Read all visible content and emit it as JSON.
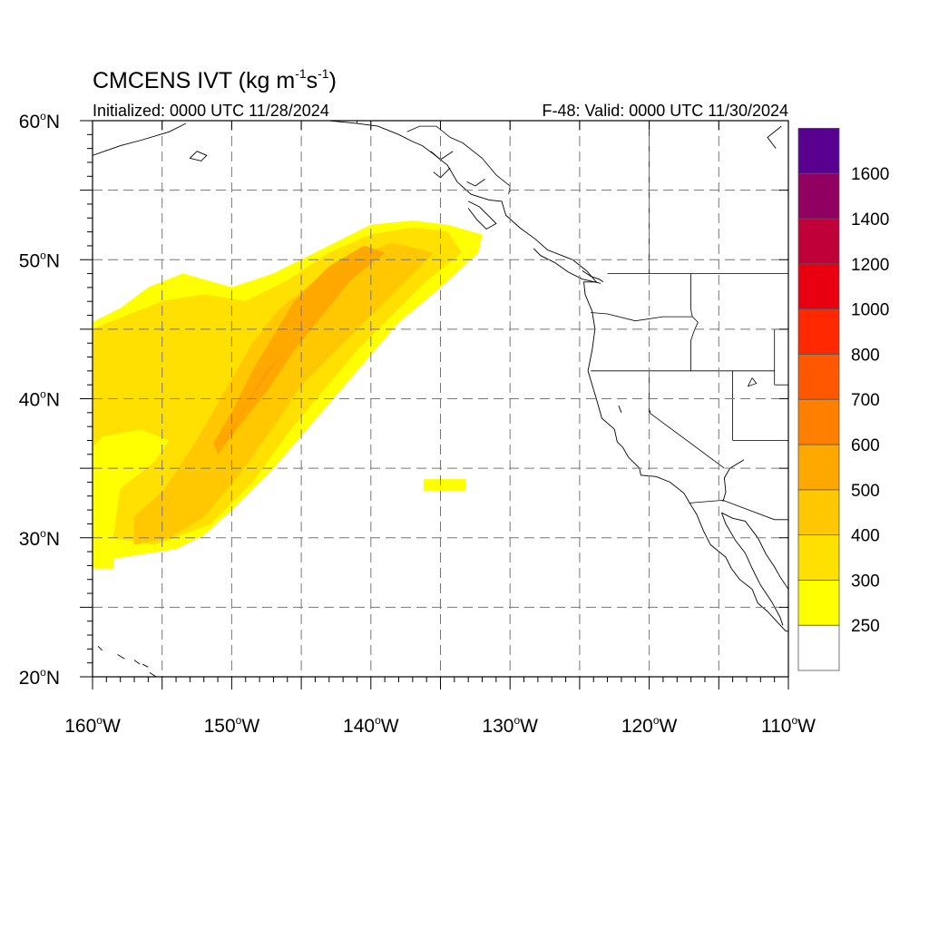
{
  "title": {
    "main": "CMCENS IVT (kg m",
    "exp1": "-1",
    "mid": "s",
    "exp2": "-1",
    "close": ")"
  },
  "subtitle_left": "Initialized: 0000 UTC 11/28/2024",
  "subtitle_right": "F-48: Valid: 0000 UTC 11/30/2024",
  "map": {
    "lon_range": [
      -160,
      -110
    ],
    "lat_range": [
      20,
      60
    ],
    "x_ticks": [
      {
        "lon": -160,
        "label": "160",
        "hemi": "W"
      },
      {
        "lon": -150,
        "label": "150",
        "hemi": "W"
      },
      {
        "lon": -140,
        "label": "140",
        "hemi": "W"
      },
      {
        "lon": -130,
        "label": "130",
        "hemi": "W"
      },
      {
        "lon": -120,
        "label": "120",
        "hemi": "W"
      },
      {
        "lon": -110,
        "label": "110",
        "hemi": "W"
      }
    ],
    "y_ticks": [
      {
        "lat": 60,
        "label": "60",
        "hemi": "N"
      },
      {
        "lat": 50,
        "label": "50",
        "hemi": "N"
      },
      {
        "lat": 40,
        "label": "40",
        "hemi": "N"
      },
      {
        "lat": 30,
        "label": "30",
        "hemi": "N"
      },
      {
        "lat": 20,
        "label": "20",
        "hemi": "N"
      }
    ],
    "grid_lons": [
      -155,
      -150,
      -145,
      -140,
      -135,
      -130,
      -125,
      -120,
      -115
    ],
    "grid_lats": [
      25,
      30,
      35,
      40,
      45,
      50,
      55
    ],
    "grid": "dashed",
    "degree_symbol": "o"
  },
  "colorbar": {
    "colors": [
      "#ffffff",
      "#ffff00",
      "#ffe000",
      "#ffc800",
      "#ffa800",
      "#ff8000",
      "#ff5800",
      "#ff2800",
      "#e80010",
      "#c00038",
      "#900060",
      "#5a0090"
    ],
    "labels": [
      "250",
      "300",
      "400",
      "500",
      "600",
      "700",
      "800",
      "1000",
      "1200",
      "1400",
      "1600"
    ]
  },
  "ivt_regions": [
    {
      "level": 250,
      "color": "#ffff00",
      "polygon": [
        [
          -160,
          27.8
        ],
        [
          -158.5,
          27.8
        ],
        [
          -158.5,
          28.5
        ],
        [
          -154,
          29.2
        ],
        [
          -152,
          30.2
        ],
        [
          -150,
          32
        ],
        [
          -147,
          35
        ],
        [
          -144,
          38.5
        ],
        [
          -141,
          42
        ],
        [
          -138,
          45.5
        ],
        [
          -135,
          48
        ],
        [
          -132.3,
          50.5
        ],
        [
          -132,
          51.8
        ],
        [
          -134.5,
          52.5
        ],
        [
          -137,
          52.8
        ],
        [
          -140,
          52.5
        ],
        [
          -143,
          51
        ],
        [
          -147,
          49
        ],
        [
          -150,
          48
        ],
        [
          -153.5,
          49
        ],
        [
          -156,
          48
        ],
        [
          -158,
          46.5
        ],
        [
          -160,
          45.5
        ]
      ]
    },
    {
      "level": 250,
      "color": "#ffff00",
      "polygon": [
        [
          -136.2,
          33.4
        ],
        [
          -133.2,
          33.4
        ],
        [
          -133.2,
          34.2
        ],
        [
          -136.2,
          34.2
        ]
      ]
    },
    {
      "level": 300,
      "color": "#ffe000",
      "polygon": [
        [
          -160,
          36.5
        ],
        [
          -159.3,
          37.3
        ],
        [
          -156.5,
          37.8
        ],
        [
          -154.5,
          37
        ],
        [
          -155.5,
          35.5
        ],
        [
          -158,
          33.5
        ],
        [
          -158.5,
          30
        ],
        [
          -155.5,
          29.5
        ],
        [
          -151.5,
          31
        ],
        [
          -148.5,
          34
        ],
        [
          -146,
          37.5
        ],
        [
          -143.5,
          40.5
        ],
        [
          -141,
          43.5
        ],
        [
          -138.5,
          46
        ],
        [
          -136,
          48.5
        ],
        [
          -133.5,
          50.5
        ],
        [
          -134.5,
          52
        ],
        [
          -137,
          52.3
        ],
        [
          -140,
          51.8
        ],
        [
          -143,
          50.5
        ],
        [
          -146,
          48.5
        ],
        [
          -149,
          47
        ],
        [
          -152,
          47.5
        ],
        [
          -155,
          47
        ],
        [
          -158,
          45.8
        ],
        [
          -160,
          45
        ]
      ]
    },
    {
      "level": 400,
      "color": "#ffc800",
      "polygon": [
        [
          -157,
          29.5
        ],
        [
          -154.5,
          30
        ],
        [
          -152,
          31.5
        ],
        [
          -149.5,
          34.5
        ],
        [
          -147,
          38
        ],
        [
          -145,
          41
        ],
        [
          -142.5,
          43.5
        ],
        [
          -140,
          46
        ],
        [
          -137.5,
          48.5
        ],
        [
          -135.5,
          50.5
        ],
        [
          -138.5,
          51.2
        ],
        [
          -141.5,
          50
        ],
        [
          -144,
          48.5
        ],
        [
          -146.5,
          46.5
        ],
        [
          -148.5,
          44
        ],
        [
          -150.5,
          40.5
        ],
        [
          -152.5,
          37
        ],
        [
          -154.8,
          33.5
        ],
        [
          -157,
          31.5
        ]
      ]
    },
    {
      "level": 500,
      "color": "#ffa800",
      "polygon": [
        [
          -151,
          36
        ],
        [
          -149.5,
          38
        ],
        [
          -147.5,
          40.5
        ],
        [
          -145.5,
          43.5
        ],
        [
          -143.5,
          46
        ],
        [
          -141.5,
          48.5
        ],
        [
          -139,
          50.5
        ],
        [
          -140.5,
          51
        ],
        [
          -143,
          49.5
        ],
        [
          -145.5,
          47
        ],
        [
          -147,
          44.5
        ],
        [
          -148.5,
          42
        ],
        [
          -150,
          39
        ],
        [
          -151.3,
          36.8
        ]
      ]
    },
    {
      "level": 600,
      "color": "#ff9a10",
      "polygon": [
        [
          -150.5,
          37
        ],
        [
          -149,
          39.5
        ],
        [
          -147.5,
          42
        ],
        [
          -146.2,
          43.2
        ],
        [
          -147.3,
          42
        ],
        [
          -148.8,
          39.8
        ],
        [
          -150.2,
          37.4
        ]
      ]
    }
  ],
  "coastlines": [
    [
      [
        -160,
        57.5
      ],
      [
        -158,
        58.2
      ],
      [
        -156.5,
        58.6
      ],
      [
        -154.5,
        59.2
      ],
      [
        -153.3,
        59.8
      ]
    ],
    [
      [
        -152.5,
        57.8
      ],
      [
        -153,
        57.3
      ],
      [
        -152.2,
        57.1
      ],
      [
        -151.8,
        57.5
      ],
      [
        -152.5,
        57.8
      ]
    ],
    [
      [
        -147.3,
        61
      ],
      [
        -146,
        60.5
      ],
      [
        -145,
        60.3
      ],
      [
        -143,
        60
      ],
      [
        -141,
        59.8
      ],
      [
        -139.5,
        59.6
      ],
      [
        -138,
        59
      ],
      [
        -137,
        58.5
      ],
      [
        -136.3,
        58.2
      ],
      [
        -135.5,
        57.6
      ],
      [
        -134.5,
        56.8
      ],
      [
        -133.8,
        55.6
      ],
      [
        -132.8,
        54.7
      ],
      [
        -131.5,
        54.3
      ],
      [
        -130.6,
        54.2
      ],
      [
        -130.3,
        53.2
      ],
      [
        -129.3,
        52.3
      ],
      [
        -128.2,
        51.5
      ],
      [
        -127.3,
        50.7
      ],
      [
        -125.5,
        50
      ],
      [
        -124.5,
        49.2
      ],
      [
        -123.8,
        48.4
      ],
      [
        -124.7,
        48.4
      ],
      [
        -124.6,
        47.5
      ],
      [
        -124.1,
        46.3
      ],
      [
        -123.9,
        45
      ],
      [
        -124.1,
        43.5
      ],
      [
        -124.4,
        42
      ],
      [
        -124.1,
        41
      ],
      [
        -123.8,
        40
      ],
      [
        -123.4,
        38.6
      ],
      [
        -122.5,
        37.8
      ],
      [
        -122.3,
        36.9
      ],
      [
        -121.9,
        36.5
      ],
      [
        -121.5,
        35.8
      ],
      [
        -120.7,
        35
      ],
      [
        -120.6,
        34.5
      ],
      [
        -119.5,
        34.4
      ],
      [
        -118.5,
        34
      ],
      [
        -117.5,
        33.2
      ],
      [
        -117.1,
        32.5
      ],
      [
        -116.6,
        31.7
      ],
      [
        -116.1,
        30.5
      ],
      [
        -115.6,
        29.5
      ],
      [
        -114.5,
        28.6
      ],
      [
        -114.1,
        27.8
      ],
      [
        -113.5,
        27
      ],
      [
        -112.6,
        26.3
      ],
      [
        -112.2,
        25.3
      ],
      [
        -111.5,
        24.7
      ],
      [
        -110.2,
        23.3
      ],
      [
        -109.6,
        23.2
      ]
    ],
    [
      [
        -114.8,
        31.8
      ],
      [
        -114.5,
        31
      ],
      [
        -113.8,
        29.8
      ],
      [
        -113.1,
        28.9
      ],
      [
        -112.6,
        27.8
      ],
      [
        -112,
        26.6
      ],
      [
        -111.2,
        25.4
      ],
      [
        -110.6,
        24.3
      ],
      [
        -110.4,
        23.7
      ]
    ],
    [
      [
        -114.8,
        31.8
      ],
      [
        -114,
        31.4
      ],
      [
        -113.1,
        31.2
      ],
      [
        -112.2,
        30
      ],
      [
        -111.6,
        28.8
      ],
      [
        -111,
        27.9
      ],
      [
        -110.6,
        27.2
      ],
      [
        -110,
        26.3
      ],
      [
        -109.1,
        25.5
      ],
      [
        -108.3,
        25
      ],
      [
        -107.4,
        24
      ],
      [
        -106.6,
        23.2
      ],
      [
        -106,
        22.6
      ]
    ],
    [
      [
        -124.8,
        49.2
      ],
      [
        -124.2,
        48.8
      ],
      [
        -123.6,
        48.6
      ],
      [
        -123.3,
        48.4
      ]
    ],
    [
      [
        -128.3,
        50.8
      ],
      [
        -127.8,
        50.3
      ],
      [
        -126.8,
        49.8
      ],
      [
        -125.8,
        49.1
      ],
      [
        -124.8,
        48.6
      ],
      [
        -123.5,
        48.3
      ]
    ],
    [
      [
        -133,
        54.2
      ],
      [
        -132.2,
        53.8
      ],
      [
        -131.6,
        53.2
      ],
      [
        -131,
        52.6
      ],
      [
        -131.7,
        52.2
      ],
      [
        -132.4,
        52.9
      ],
      [
        -133,
        53.7
      ]
    ],
    [
      [
        -131.8,
        55.8
      ],
      [
        -132.5,
        55.3
      ],
      [
        -133.1,
        55.6
      ]
    ],
    [
      [
        -134.1,
        57.8
      ],
      [
        -135,
        57.2
      ],
      [
        -135.7,
        57.8
      ]
    ],
    [
      [
        -134.3,
        56.6
      ],
      [
        -135,
        55.9
      ],
      [
        -135.5,
        56.3
      ]
    ],
    [
      [
        -159.6,
        22.2
      ],
      [
        -159.3,
        21.9
      ]
    ],
    [
      [
        -158.2,
        21.6
      ],
      [
        -157.7,
        21.3
      ]
    ],
    [
      [
        -157,
        21.2
      ],
      [
        -156.6,
        20.9
      ]
    ],
    [
      [
        -156.4,
        20.9
      ],
      [
        -156,
        20.7
      ]
    ],
    [
      [
        -155.9,
        20.3
      ],
      [
        -155.1,
        19.8
      ]
    ],
    [
      [
        -110.9,
        58
      ],
      [
        -111.5,
        58.8
      ],
      [
        -110.5,
        59.6
      ]
    ],
    [
      [
        -113.2,
        35.6
      ],
      [
        -114.2,
        35
      ],
      [
        -114.6,
        34.3
      ],
      [
        -114.5,
        33.3
      ],
      [
        -114.7,
        32.6
      ]
    ],
    [
      [
        -122.2,
        39.5
      ],
      [
        -122,
        39
      ]
    ]
  ],
  "borders": [
    [
      [
        -141,
        60
      ],
      [
        -141,
        59.8
      ]
    ],
    [
      [
        -137.4,
        59.2
      ],
      [
        -136.5,
        59.6
      ],
      [
        -135.3,
        59.6
      ],
      [
        -134.3,
        58.8
      ],
      [
        -133.4,
        58.4
      ],
      [
        -132,
        57.3
      ],
      [
        -131,
        56.1
      ],
      [
        -130,
        55.3
      ],
      [
        -130.1,
        54.7
      ]
    ],
    [
      [
        -123,
        49
      ],
      [
        -110,
        49
      ]
    ],
    [
      [
        -120,
        60
      ],
      [
        -120,
        49
      ]
    ],
    [
      [
        -117,
        49
      ],
      [
        -117,
        46.4
      ],
      [
        -116.9,
        45.9
      ],
      [
        -116.5,
        45.5
      ],
      [
        -116.8,
        44.8
      ],
      [
        -117,
        44.2
      ],
      [
        -117,
        42
      ]
    ],
    [
      [
        -124.2,
        46.2
      ],
      [
        -123,
        46.1
      ],
      [
        -121,
        45.6
      ],
      [
        -119,
        45.9
      ],
      [
        -116.9,
        45.9
      ]
    ],
    [
      [
        -124.2,
        42
      ],
      [
        -111,
        42
      ]
    ],
    [
      [
        -111,
        45
      ],
      [
        -110,
        45
      ]
    ],
    [
      [
        -111,
        45
      ],
      [
        -111,
        41
      ]
    ],
    [
      [
        -111,
        41
      ],
      [
        -110,
        41
      ]
    ],
    [
      [
        -120,
        42
      ],
      [
        -120,
        39
      ],
      [
        -114.6,
        35
      ]
    ],
    [
      [
        -114,
        42
      ],
      [
        -114,
        37
      ]
    ],
    [
      [
        -114,
        37
      ],
      [
        -110,
        37
      ]
    ],
    [
      [
        -117.1,
        32.5
      ],
      [
        -114.7,
        32.7
      ],
      [
        -111,
        31.3
      ],
      [
        -110,
        31.3
      ]
    ]
  ],
  "lakes": [
    [
      [
        -112.6,
        41.5
      ],
      [
        -112.3,
        41.1
      ],
      [
        -112.9,
        40.9
      ],
      [
        -112.6,
        41.5
      ]
    ],
    [
      [
        -120,
        39.2
      ],
      [
        -119.9,
        39
      ]
    ]
  ]
}
